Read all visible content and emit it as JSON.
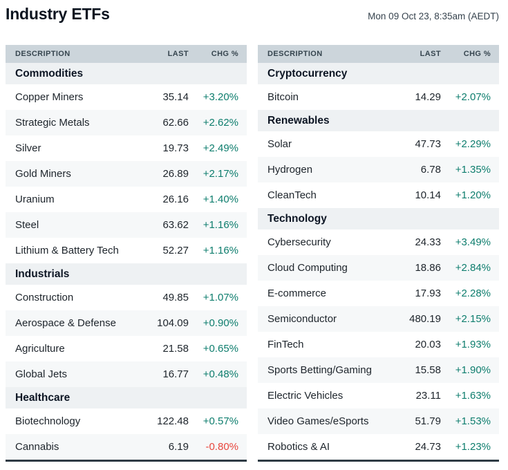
{
  "header": {
    "title": "Industry ETFs",
    "timestamp": "Mon 09 Oct 23, 8:35am (AEDT)"
  },
  "table_header": {
    "description": "DESCRIPTION",
    "last": "LAST",
    "chg": "CHG %"
  },
  "colors": {
    "positive": "#0d7d6d",
    "negative": "#e8453c",
    "column_header_bg": "#ccd5db",
    "section_bg": "#eef1f3",
    "zebra_bg": "#f6f8f9",
    "table_bottom_border": "#2e3b44"
  },
  "columns": [
    {
      "sections": [
        {
          "name": "Commodities",
          "rows": [
            {
              "name": "Copper Miners",
              "last": "35.14",
              "chg": "+3.20%"
            },
            {
              "name": "Strategic Metals",
              "last": "62.66",
              "chg": "+2.62%"
            },
            {
              "name": "Silver",
              "last": "19.73",
              "chg": "+2.49%"
            },
            {
              "name": "Gold Miners",
              "last": "26.89",
              "chg": "+2.17%"
            },
            {
              "name": "Uranium",
              "last": "26.16",
              "chg": "+1.40%"
            },
            {
              "name": "Steel",
              "last": "63.62",
              "chg": "+1.16%"
            },
            {
              "name": "Lithium & Battery Tech",
              "last": "52.27",
              "chg": "+1.16%"
            }
          ]
        },
        {
          "name": "Industrials",
          "rows": [
            {
              "name": "Construction",
              "last": "49.85",
              "chg": "+1.07%"
            },
            {
              "name": "Aerospace & Defense",
              "last": "104.09",
              "chg": "+0.90%"
            },
            {
              "name": "Agriculture",
              "last": "21.58",
              "chg": "+0.65%"
            },
            {
              "name": "Global Jets",
              "last": "16.77",
              "chg": "+0.48%"
            }
          ]
        },
        {
          "name": "Healthcare",
          "rows": [
            {
              "name": "Biotechnology",
              "last": "122.48",
              "chg": "+0.57%"
            },
            {
              "name": "Cannabis",
              "last": "6.19",
              "chg": "-0.80%"
            }
          ]
        }
      ]
    },
    {
      "sections": [
        {
          "name": "Cryptocurrency",
          "rows": [
            {
              "name": "Bitcoin",
              "last": "14.29",
              "chg": "+2.07%"
            }
          ]
        },
        {
          "name": "Renewables",
          "rows": [
            {
              "name": "Solar",
              "last": "47.73",
              "chg": "+2.29%"
            },
            {
              "name": "Hydrogen",
              "last": "6.78",
              "chg": "+1.35%"
            },
            {
              "name": "CleanTech",
              "last": "10.14",
              "chg": "+1.20%"
            }
          ]
        },
        {
          "name": "Technology",
          "rows": [
            {
              "name": "Cybersecurity",
              "last": "24.33",
              "chg": "+3.49%"
            },
            {
              "name": "Cloud Computing",
              "last": "18.86",
              "chg": "+2.84%"
            },
            {
              "name": "E-commerce",
              "last": "17.93",
              "chg": "+2.28%"
            },
            {
              "name": "Semiconductor",
              "last": "480.19",
              "chg": "+2.15%"
            },
            {
              "name": "FinTech",
              "last": "20.03",
              "chg": "+1.93%"
            },
            {
              "name": "Sports Betting/Gaming",
              "last": "15.58",
              "chg": "+1.90%"
            },
            {
              "name": "Electric Vehicles",
              "last": "23.11",
              "chg": "+1.63%"
            },
            {
              "name": "Video Games/eSports",
              "last": "51.79",
              "chg": "+1.53%"
            },
            {
              "name": "Robotics & AI",
              "last": "24.73",
              "chg": "+1.23%"
            }
          ]
        }
      ]
    }
  ]
}
